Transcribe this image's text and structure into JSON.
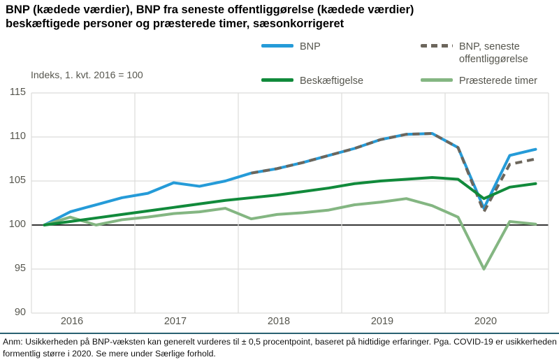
{
  "title_lines": [
    "BNP (kædede værdier), BNP fra seneste offentliggørelse (kædede værdier)",
    "beskæftigede personer og præsterede timer, sæsonkorrigeret"
  ],
  "axis_note": "Indeks, 1. kvt. 2016 = 100",
  "legend": [
    {
      "label": "BNP",
      "color": "#259bd8",
      "style": "solid"
    },
    {
      "label": "BNP, seneste offentliggørelse",
      "color": "#6c665c",
      "style": "dashed"
    },
    {
      "label": "Beskæftigelse",
      "color": "#118a3b",
      "style": "solid"
    },
    {
      "label": "Præsterede timer",
      "color": "#84b682",
      "style": "solid"
    }
  ],
  "footnote": "Anm: Usikkerheden på BNP-væksten kan generelt vurderes til ± 0,5 procentpoint, baseret på hidtidige erfaringer. Pga. COVID-19 er usikkerheden formentlig større i 2020. Se mere under Særlige forhold.",
  "colors": {
    "gridline": "#dcdcda",
    "baseline": "#1a1a1a",
    "divider": "#2a6171",
    "axis_text": "#56564e"
  },
  "chart_data": {
    "type": "line",
    "x_years": [
      "2016",
      "2017",
      "2018",
      "2019",
      "2020"
    ],
    "x_resolution": "quarterly",
    "ylim": [
      90,
      115
    ],
    "yticks": [
      115,
      110,
      105,
      100,
      95,
      90
    ],
    "baseline": 100,
    "grid": true,
    "legend_position": "top",
    "series": [
      {
        "id": "bnp",
        "name": "BNP",
        "color": "#259bd8",
        "style": "solid",
        "start_index": 0,
        "values": [
          100,
          101.5,
          102.3,
          103.1,
          103.6,
          104.8,
          104.4,
          105.0,
          105.9,
          106.4,
          107.1,
          107.9,
          108.7,
          109.7,
          110.3,
          110.4,
          108.8,
          101.9,
          107.9,
          108.6
        ]
      },
      {
        "id": "bnp-seneste",
        "name": "BNP, seneste offentliggørelse",
        "color": "#6c665c",
        "style": "dashed",
        "dash": "10 7",
        "start_index": 8,
        "values": [
          105.9,
          106.4,
          107.1,
          107.9,
          108.7,
          109.7,
          110.3,
          110.4,
          108.8,
          101.5,
          106.9,
          107.5
        ]
      },
      {
        "id": "praesterede-timer",
        "name": "Præsterede timer",
        "color": "#84b682",
        "style": "solid",
        "start_index": 0,
        "values": [
          100,
          100.9,
          100.0,
          100.6,
          100.9,
          101.3,
          101.5,
          101.9,
          100.7,
          101.2,
          101.4,
          101.7,
          102.3,
          102.6,
          103.0,
          102.2,
          100.9,
          95.0,
          100.4,
          100.1
        ]
      },
      {
        "id": "beskaeftigelse",
        "name": "Beskæftigelse",
        "color": "#118a3b",
        "style": "solid",
        "start_index": 0,
        "values": [
          100,
          100.4,
          100.8,
          101.2,
          101.6,
          102.0,
          102.4,
          102.8,
          103.1,
          103.4,
          103.8,
          104.2,
          104.7,
          105.0,
          105.2,
          105.4,
          105.2,
          103.0,
          104.3,
          104.7
        ]
      }
    ]
  }
}
